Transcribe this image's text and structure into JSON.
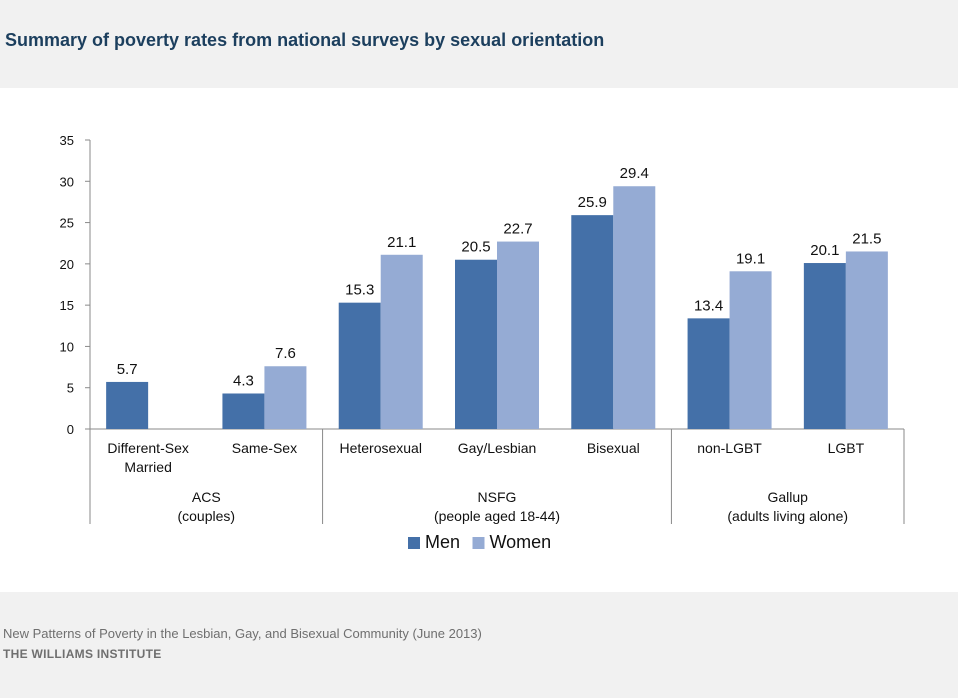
{
  "page": {
    "title": "Summary of poverty rates from national surveys by sexual orientation",
    "source": "New Patterns of Poverty in the Lesbian, Gay, and Bisexual Community (June 2013)",
    "publisher": "THE WILLIAMS INSTITUTE"
  },
  "chart_data": {
    "type": "bar",
    "title": "",
    "xlabel": "",
    "ylabel": "",
    "ylim": [
      0,
      35
    ],
    "yticks": [
      0,
      5,
      10,
      15,
      20,
      25,
      30,
      35
    ],
    "grid": false,
    "legend_position": "bottom-center",
    "categories": [
      "Different-Sex Married",
      "Same-Sex",
      "Heterosexual",
      "Gay/Lesbian",
      "Bisexual",
      "non-LGBT",
      "LGBT"
    ],
    "category_lines": [
      [
        "Different-Sex",
        "Married"
      ],
      [
        "Same-Sex"
      ],
      [
        "Heterosexual"
      ],
      [
        "Gay/Lesbian"
      ],
      [
        "Bisexual"
      ],
      [
        "non-LGBT"
      ],
      [
        "LGBT"
      ]
    ],
    "groups": [
      {
        "label_lines": [
          "ACS",
          "(couples)"
        ],
        "categories": [
          "Different-Sex Married",
          "Same-Sex"
        ]
      },
      {
        "label_lines": [
          "NSFG",
          "(people aged 18-44)"
        ],
        "categories": [
          "Heterosexual",
          "Gay/Lesbian",
          "Bisexual"
        ]
      },
      {
        "label_lines": [
          "Gallup",
          "(adults living alone)"
        ],
        "categories": [
          "non-LGBT",
          "LGBT"
        ]
      }
    ],
    "series": [
      {
        "name": "Men",
        "color": "#4470a8",
        "values": [
          5.7,
          4.3,
          15.3,
          20.5,
          25.9,
          13.4,
          20.1
        ]
      },
      {
        "name": "Women",
        "color": "#95abd4",
        "values": [
          null,
          7.6,
          21.1,
          22.7,
          29.4,
          19.1,
          21.5
        ]
      }
    ]
  }
}
